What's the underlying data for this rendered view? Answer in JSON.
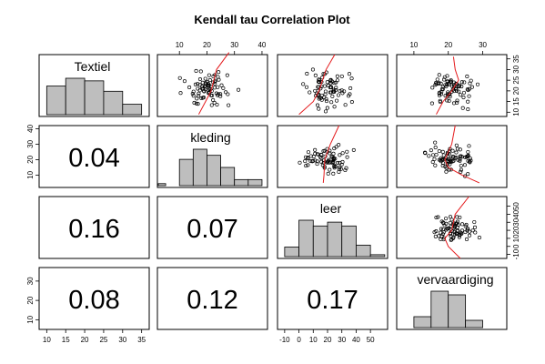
{
  "title": "Kendall tau Correlation Plot",
  "chart_data": {
    "type": "scatter",
    "title": "Kendall tau Correlation Plot",
    "variables": [
      "Textiel",
      "kleding",
      "leer",
      "vervaardiging"
    ],
    "correlations": [
      {
        "row": "kleding",
        "col": "Textiel",
        "value": "0.04"
      },
      {
        "row": "leer",
        "col": "Textiel",
        "value": "0.16"
      },
      {
        "row": "leer",
        "col": "kleding",
        "value": "0.07"
      },
      {
        "row": "vervaardiging",
        "col": "Textiel",
        "value": "0.08"
      },
      {
        "row": "vervaardiging",
        "col": "kleding",
        "value": "0.12"
      },
      {
        "row": "vervaardiging",
        "col": "leer",
        "value": "0.17"
      }
    ],
    "axis_ranges": {
      "Textiel": [
        8,
        37
      ],
      "kleding": [
        2,
        42
      ],
      "leer": [
        -15,
        62
      ],
      "vervaardiging": [
        5,
        37
      ]
    },
    "axis_ticks": {
      "Textiel": [
        10,
        15,
        20,
        25,
        30,
        35
      ],
      "kleding": [
        10,
        20,
        30,
        40
      ],
      "leer": [
        -10,
        0,
        10,
        20,
        30,
        40,
        50
      ],
      "vervaardiging": [
        10,
        20,
        30
      ]
    },
    "histograms": {
      "Textiel": {
        "edges": [
          10,
          15,
          20,
          25,
          30,
          35
        ],
        "counts": [
          11,
          14,
          13,
          9,
          4
        ]
      },
      "kleding": {
        "edges": [
          0,
          5,
          10,
          15,
          20,
          25,
          30,
          35,
          40
        ],
        "counts": [
          1,
          0,
          13,
          18,
          15,
          9,
          3,
          3
        ]
      },
      "leer": {
        "edges": [
          -10,
          0,
          10,
          20,
          30,
          40,
          50,
          60
        ],
        "counts": [
          5,
          19,
          16,
          18,
          16,
          6,
          1
        ]
      },
      "vervaardiging": {
        "edges": [
          10,
          15,
          20,
          25,
          30,
          35
        ],
        "counts": [
          3,
          10,
          9,
          2,
          0
        ]
      }
    },
    "smooth_lines": {
      "kleding_vs_Textiel": [
        [
          9,
          17
        ],
        [
          15,
          19.5
        ],
        [
          20,
          21.5
        ],
        [
          30,
          23.5
        ],
        [
          38,
          28
        ]
      ],
      "leer_vs_Textiel": [
        [
          9,
          0
        ],
        [
          15,
          10
        ],
        [
          20,
          14
        ],
        [
          30,
          19
        ],
        [
          37,
          25
        ]
      ],
      "vervaardiging_vs_Textiel": [
        [
          9,
          16.5
        ],
        [
          15,
          18.5
        ],
        [
          20,
          21
        ],
        [
          25,
          23
        ],
        [
          30,
          22
        ],
        [
          36,
          21.5
        ]
      ],
      "leer_vs_kleding": [
        [
          5,
          17
        ],
        [
          10,
          17.5
        ],
        [
          20,
          18
        ],
        [
          30,
          22
        ],
        [
          42,
          28
        ]
      ],
      "vervaardiging_vs_kleding": [
        [
          5,
          29
        ],
        [
          10,
          24
        ],
        [
          15,
          20
        ],
        [
          20,
          19
        ],
        [
          30,
          21
        ],
        [
          42,
          22
        ]
      ],
      "vervaardiging_vs_leer": [
        [
          -15,
          23.5
        ],
        [
          0,
          20
        ],
        [
          10,
          19
        ],
        [
          20,
          21
        ],
        [
          40,
          22
        ],
        [
          62,
          26
        ]
      ]
    }
  }
}
